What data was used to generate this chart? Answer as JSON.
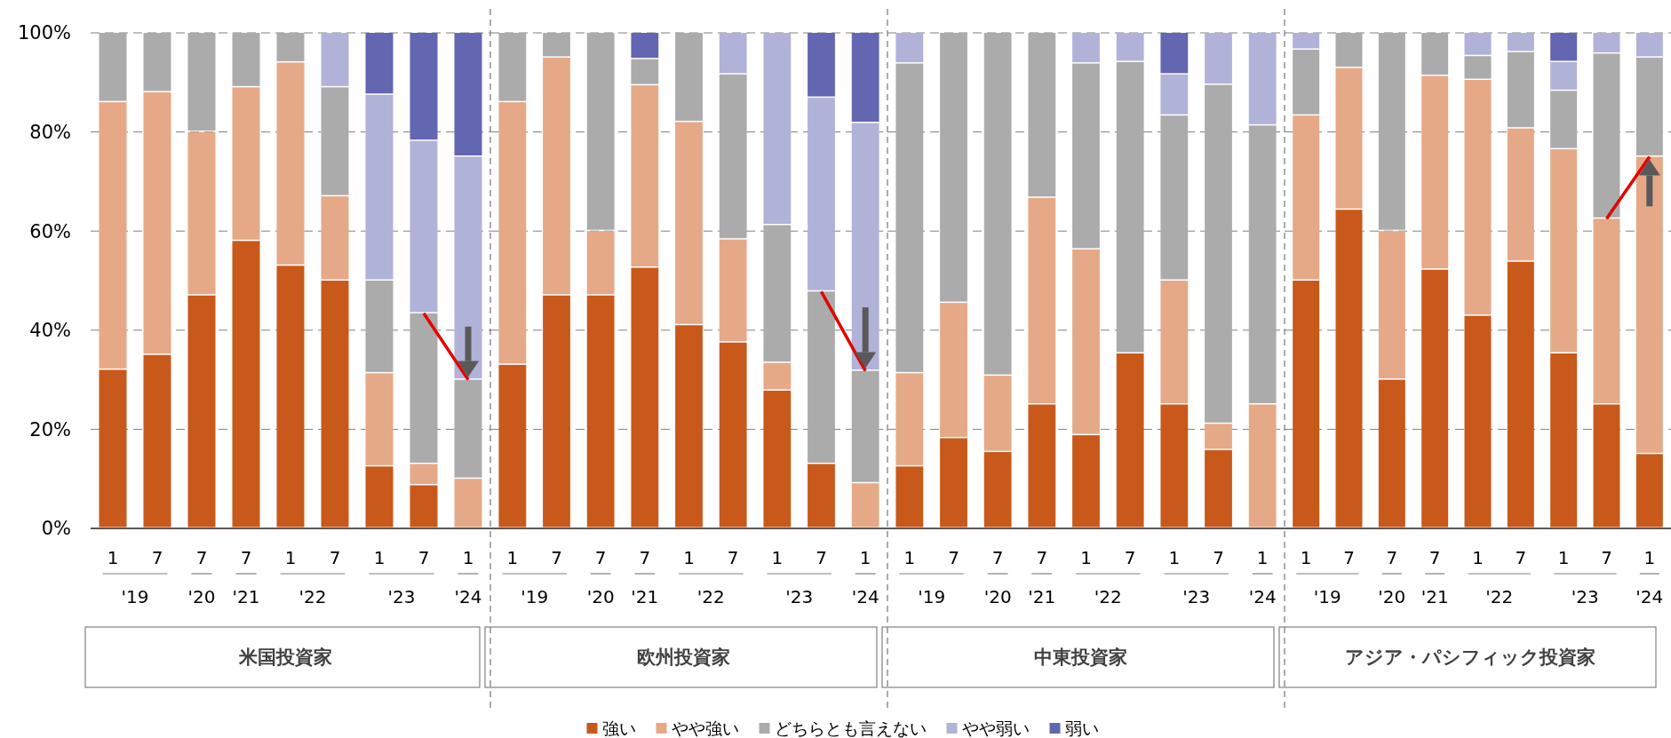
{
  "chart_data": [
    {
      "type": "bar",
      "stacked": true,
      "xlabel": "米国投資家",
      "categories": [
        "1",
        "7",
        "7",
        "7",
        "1",
        "7",
        "1",
        "7",
        "1"
      ],
      "annotations": [
        "'19",
        "'20",
        "'21",
        "'22",
        "'23",
        "'24"
      ],
      "ylim": [
        0,
        100
      ],
      "yticks": [
        {
          "value": 0,
          "label": "0%"
        },
        {
          "value": 20,
          "label": "20%"
        },
        {
          "value": 40,
          "label": "40%"
        },
        {
          "value": 60,
          "label": "60%"
        },
        {
          "value": 80,
          "label": "80%"
        },
        {
          "value": 100,
          "label": "100%"
        }
      ],
      "grid": "y",
      "legend": "bottom",
      "series": [
        {
          "name": "強い",
          "color": "#c8591a",
          "values": [
            32,
            35,
            47,
            58,
            53,
            50,
            12.5,
            8.7,
            0
          ]
        },
        {
          "name": "やや強い",
          "color": "#e5a988",
          "values": [
            54,
            53,
            33,
            31,
            41,
            17,
            18.8,
            4.3,
            10
          ]
        },
        {
          "name": "どちらとも言えない",
          "color": "#ababab",
          "values": [
            14,
            12,
            20,
            11,
            6,
            22,
            18.7,
            30.4,
            20
          ]
        },
        {
          "name": "やや弱い",
          "color": "#b0b2d8",
          "values": [
            0,
            0,
            0,
            0,
            0,
            11,
            37.5,
            34.8,
            45
          ]
        },
        {
          "name": "弱い",
          "color": "#6366b1",
          "values": [
            0,
            0,
            0,
            0,
            0,
            0,
            12.5,
            21.8,
            25
          ]
        },
        {
          "type": "line",
          "color": "#e60000",
          "values": [
            null,
            null,
            null,
            null,
            null,
            null,
            null,
            43.4,
            30
          ]
        }
      ]
    },
    {
      "type": "bar",
      "stacked": true,
      "xlabel": "欧州投資家",
      "categories": [
        "1",
        "7",
        "7",
        "7",
        "1",
        "7",
        "1",
        "7",
        "1"
      ],
      "annotations": [
        "'19",
        "'20",
        "'21",
        "'22",
        "'23",
        "'24"
      ],
      "ylim": [
        0,
        100
      ],
      "yticks": [
        {
          "value": 0,
          "label": null
        },
        {
          "value": 20,
          "label": null
        },
        {
          "value": 40,
          "label": null
        },
        {
          "value": 60,
          "label": null
        },
        {
          "value": 80,
          "label": null
        },
        {
          "value": 100,
          "label": null
        }
      ],
      "grid": "y",
      "tick_labels": "x",
      "series": [
        {
          "color": "#c8591a",
          "values": [
            33,
            47,
            47,
            52.6,
            41,
            37.5,
            27.8,
            13,
            0
          ]
        },
        {
          "color": "#e5a988",
          "values": [
            53,
            48,
            13,
            36.8,
            41,
            20.8,
            5.6,
            0,
            9.1
          ]
        },
        {
          "color": "#ababab",
          "values": [
            14,
            5,
            40,
            5.3,
            18,
            33.3,
            27.8,
            34.8,
            22.7
          ]
        },
        {
          "color": "#b0b2d8",
          "values": [
            0,
            0,
            0,
            0,
            0,
            8.4,
            38.8,
            39.1,
            50
          ]
        },
        {
          "color": "#6366b1",
          "values": [
            0,
            0,
            0,
            5.3,
            0,
            0,
            0,
            13.1,
            18.2
          ]
        },
        {
          "type": "line",
          "color": "#e60000",
          "values": [
            null,
            null,
            null,
            null,
            null,
            null,
            null,
            47.8,
            31.8
          ]
        }
      ]
    },
    {
      "type": "bar",
      "stacked": true,
      "xlabel": "中東投資家",
      "categories": [
        "1",
        "7",
        "7",
        "7",
        "1",
        "7",
        "1",
        "7",
        "1"
      ],
      "annotations": [
        "'19",
        "'20",
        "'21",
        "'22",
        "'23",
        "'24"
      ],
      "ylim": [
        0,
        100
      ],
      "yticks": [
        {
          "value": 0,
          "label": null
        },
        {
          "value": 20,
          "label": null
        },
        {
          "value": 40,
          "label": null
        },
        {
          "value": 60,
          "label": null
        },
        {
          "value": 80,
          "label": null
        },
        {
          "value": 100,
          "label": null
        }
      ],
      "grid": "y",
      "tick_labels": "x",
      "series": [
        {
          "color": "#c8591a",
          "values": [
            12.5,
            18.2,
            15.4,
            25,
            18.8,
            35.3,
            25,
            15.8,
            0
          ]
        },
        {
          "color": "#e5a988",
          "values": [
            18.8,
            27.3,
            15.4,
            41.7,
            37.5,
            0,
            25,
            5.3,
            25
          ]
        },
        {
          "color": "#ababab",
          "values": [
            62.5,
            54.5,
            69.2,
            33.3,
            37.5,
            58.8,
            33.3,
            68.4,
            56.3
          ]
        },
        {
          "color": "#b0b2d8",
          "values": [
            6.2,
            0,
            0,
            0,
            6.2,
            5.9,
            8.3,
            10.5,
            18.7
          ]
        },
        {
          "color": "#6366b1",
          "values": [
            0,
            0,
            0,
            0,
            0,
            0,
            8.4,
            0,
            0
          ]
        }
      ]
    },
    {
      "type": "bar",
      "stacked": true,
      "xlabel": "アジア・パシフィック投資家",
      "categories": [
        "1",
        "7",
        "7",
        "7",
        "1",
        "7",
        "1",
        "7",
        "1"
      ],
      "annotations": [
        "'19",
        "'20",
        "'21",
        "'22",
        "'23",
        "'24"
      ],
      "ylim": [
        0,
        100
      ],
      "yticks": [
        {
          "value": 0,
          "label": null
        },
        {
          "value": 20,
          "label": null
        },
        {
          "value": 40,
          "label": null
        },
        {
          "value": 60,
          "label": null
        },
        {
          "value": 80,
          "label": null
        },
        {
          "value": 100,
          "label": null
        }
      ],
      "grid": "y",
      "tick_labels": "x",
      "series": [
        {
          "color": "#c8591a",
          "values": [
            50,
            64.3,
            30,
            52.2,
            42.9,
            53.8,
            35.3,
            25,
            15
          ]
        },
        {
          "color": "#e5a988",
          "values": [
            33.3,
            28.6,
            30,
            39.1,
            47.6,
            26.9,
            41.2,
            37.5,
            60
          ]
        },
        {
          "color": "#ababab",
          "values": [
            13.3,
            7.1,
            40,
            8.7,
            4.8,
            15.4,
            11.8,
            33.3,
            20
          ]
        },
        {
          "color": "#b0b2d8",
          "values": [
            3.4,
            0,
            0,
            0,
            4.7,
            3.9,
            5.8,
            4.2,
            5
          ]
        },
        {
          "color": "#6366b1",
          "values": [
            0,
            0,
            0,
            0,
            0,
            0,
            5.9,
            0,
            0
          ]
        },
        {
          "type": "line",
          "color": "#e60000",
          "values": [
            null,
            null,
            null,
            null,
            null,
            null,
            null,
            62.5,
            75
          ]
        }
      ]
    }
  ]
}
